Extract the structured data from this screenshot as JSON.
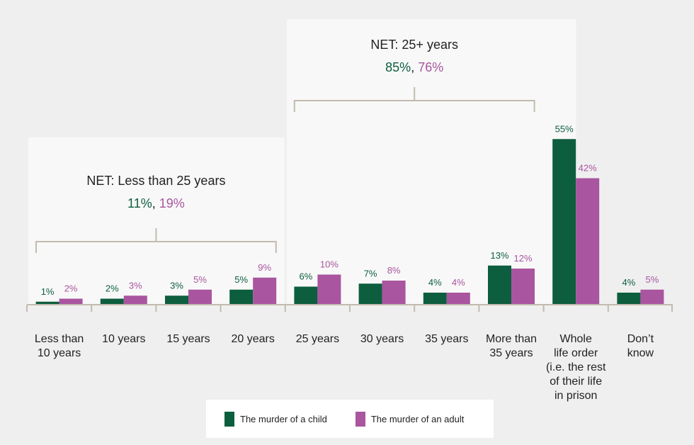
{
  "chart_data": {
    "type": "bar",
    "categories": [
      [
        "Less than",
        "10 years"
      ],
      [
        "10 years"
      ],
      [
        "15 years"
      ],
      [
        "20 years"
      ],
      [
        "25 years"
      ],
      [
        "30 years"
      ],
      [
        "35 years"
      ],
      [
        "More than",
        "35 years"
      ],
      [
        "Whole",
        "life order",
        "(i.e. the rest",
        "of their life",
        "in prison"
      ],
      [
        "Don’t",
        "know"
      ]
    ],
    "series": [
      {
        "name": "The murder of a child",
        "color": "#0d5e3e",
        "values": [
          1,
          2,
          3,
          5,
          6,
          7,
          4,
          13,
          55,
          4
        ]
      },
      {
        "name": "The murder of an adult",
        "color": "#a9559f",
        "values": [
          2,
          3,
          5,
          9,
          10,
          8,
          4,
          12,
          42,
          5
        ]
      }
    ],
    "ylim": [
      0,
      60
    ],
    "value_suffix": "%",
    "grid": false,
    "legend_position": "bottom",
    "groups": [
      {
        "title": "NET: Less than 25 years",
        "child_value": "11%",
        "separator": ", ",
        "adult_value": "19%",
        "from_index": 0,
        "to_index": 3
      },
      {
        "title": "NET: 25+ years",
        "child_value": "85%",
        "separator": ", ",
        "adult_value": "76%",
        "from_index": 4,
        "to_index": 7
      }
    ]
  },
  "colors": {
    "bracket": "#c2bbae",
    "axis": "#c2bbae",
    "panel": "#f8f8f8",
    "text": "#222222"
  }
}
